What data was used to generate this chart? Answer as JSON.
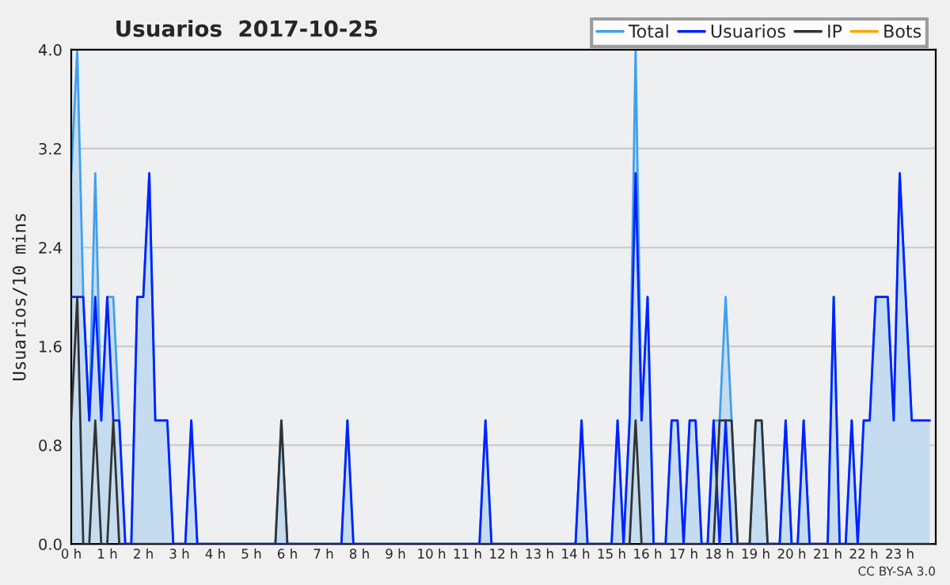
{
  "chart_data": {
    "type": "line",
    "title": "Usuarios  2017-10-25",
    "ylabel": "Usuarios/10 mins",
    "annotations": [
      "CC BY-SA 3.0"
    ],
    "x": [
      0,
      0.167,
      0.333,
      0.5,
      0.667,
      0.833,
      1,
      1.167,
      1.333,
      1.5,
      1.667,
      1.833,
      2,
      2.167,
      2.333,
      2.5,
      2.667,
      2.833,
      3,
      3.167,
      3.333,
      3.5,
      3.667,
      3.833,
      4,
      4.167,
      4.333,
      4.5,
      4.667,
      4.833,
      5,
      5.167,
      5.333,
      5.5,
      5.667,
      5.833,
      6,
      6.167,
      6.333,
      6.5,
      6.667,
      6.833,
      7,
      7.167,
      7.333,
      7.5,
      7.667,
      7.833,
      8,
      8.167,
      8.333,
      8.5,
      8.667,
      8.833,
      9,
      9.167,
      9.333,
      9.5,
      9.667,
      9.833,
      10,
      10.167,
      10.333,
      10.5,
      10.667,
      10.833,
      11,
      11.167,
      11.333,
      11.5,
      11.667,
      11.833,
      12,
      12.167,
      12.333,
      12.5,
      12.667,
      12.833,
      13,
      13.167,
      13.333,
      13.5,
      13.667,
      13.833,
      14,
      14.167,
      14.333,
      14.5,
      14.667,
      14.833,
      15,
      15.167,
      15.333,
      15.5,
      15.667,
      15.833,
      16,
      16.167,
      16.333,
      16.5,
      16.667,
      16.833,
      17,
      17.167,
      17.333,
      17.5,
      17.667,
      17.833,
      18,
      18.167,
      18.333,
      18.5,
      18.667,
      18.833,
      19,
      19.167,
      19.333,
      19.5,
      19.667,
      19.833,
      20,
      20.167,
      20.333,
      20.5,
      20.667,
      20.833,
      21,
      21.167,
      21.333,
      21.5,
      21.667,
      21.833,
      22,
      22.167,
      22.333,
      22.5,
      22.667,
      22.833,
      23,
      23.167,
      23.333,
      23.5,
      23.667,
      23.833
    ],
    "series": [
      {
        "name": "Total",
        "color": "#3fa0f0",
        "type": "area",
        "values": [
          3,
          4,
          2,
          1,
          3,
          1,
          2,
          2,
          1,
          0,
          0,
          2,
          2,
          3,
          1,
          1,
          1,
          0,
          0,
          0,
          1,
          0,
          0,
          0,
          0,
          0,
          0,
          0,
          0,
          0,
          0,
          0,
          0,
          0,
          0,
          1,
          0,
          0,
          0,
          0,
          0,
          0,
          0,
          0,
          0,
          0,
          1,
          0,
          0,
          0,
          0,
          0,
          0,
          0,
          0,
          0,
          0,
          0,
          0,
          0,
          0,
          0,
          0,
          0,
          0,
          0,
          0,
          0,
          0,
          1,
          0,
          0,
          0,
          0,
          0,
          0,
          0,
          0,
          0,
          0,
          0,
          0,
          0,
          0,
          0,
          1,
          0,
          0,
          0,
          0,
          0,
          1,
          0,
          1,
          4,
          1,
          2,
          0,
          0,
          0,
          1,
          1,
          0,
          1,
          1,
          0,
          0,
          1,
          1,
          2,
          1,
          0,
          0,
          0,
          1,
          1,
          0,
          0,
          0,
          1,
          0,
          0,
          1,
          0,
          0,
          0,
          0,
          2,
          0,
          0,
          1,
          0,
          1,
          1,
          2,
          2,
          2,
          1,
          3,
          2,
          1,
          1,
          1,
          1
        ]
      },
      {
        "name": "Usuarios",
        "color": "#0022ff",
        "values": [
          2,
          2,
          2,
          1,
          2,
          1,
          2,
          1,
          1,
          0,
          0,
          2,
          2,
          3,
          1,
          1,
          1,
          0,
          0,
          0,
          1,
          0,
          0,
          0,
          0,
          0,
          0,
          0,
          0,
          0,
          0,
          0,
          0,
          0,
          0,
          0,
          0,
          0,
          0,
          0,
          0,
          0,
          0,
          0,
          0,
          0,
          1,
          0,
          0,
          0,
          0,
          0,
          0,
          0,
          0,
          0,
          0,
          0,
          0,
          0,
          0,
          0,
          0,
          0,
          0,
          0,
          0,
          0,
          0,
          1,
          0,
          0,
          0,
          0,
          0,
          0,
          0,
          0,
          0,
          0,
          0,
          0,
          0,
          0,
          0,
          1,
          0,
          0,
          0,
          0,
          0,
          1,
          0,
          1,
          3,
          1,
          2,
          0,
          0,
          0,
          1,
          1,
          0,
          1,
          1,
          0,
          0,
          1,
          0,
          1,
          0,
          0,
          0,
          0,
          0,
          0,
          0,
          0,
          0,
          1,
          0,
          0,
          1,
          0,
          0,
          0,
          0,
          2,
          0,
          0,
          1,
          0,
          1,
          1,
          2,
          2,
          2,
          1,
          3,
          2,
          1,
          1,
          1,
          1
        ]
      },
      {
        "name": "IP",
        "color": "#333333",
        "values": [
          1,
          2,
          0,
          0,
          1,
          0,
          0,
          1,
          0,
          0,
          0,
          0,
          0,
          0,
          0,
          0,
          0,
          0,
          0,
          0,
          0,
          0,
          0,
          0,
          0,
          0,
          0,
          0,
          0,
          0,
          0,
          0,
          0,
          0,
          0,
          1,
          0,
          0,
          0,
          0,
          0,
          0,
          0,
          0,
          0,
          0,
          0,
          0,
          0,
          0,
          0,
          0,
          0,
          0,
          0,
          0,
          0,
          0,
          0,
          0,
          0,
          0,
          0,
          0,
          0,
          0,
          0,
          0,
          0,
          0,
          0,
          0,
          0,
          0,
          0,
          0,
          0,
          0,
          0,
          0,
          0,
          0,
          0,
          0,
          0,
          0,
          0,
          0,
          0,
          0,
          0,
          0,
          0,
          0,
          1,
          0,
          0,
          0,
          0,
          0,
          0,
          0,
          0,
          0,
          0,
          0,
          0,
          0,
          1,
          1,
          1,
          0,
          0,
          0,
          1,
          1,
          0,
          0,
          0,
          0,
          0,
          0,
          0,
          0,
          0,
          0,
          0,
          0,
          0,
          0,
          0,
          0,
          0,
          0,
          0,
          0,
          0,
          0,
          0,
          0,
          0,
          0,
          0,
          0
        ]
      },
      {
        "name": "Bots",
        "color": "#ffa500",
        "values": [
          null,
          null,
          null,
          null,
          null,
          null,
          null,
          null,
          null,
          null,
          null,
          null,
          null,
          null,
          null,
          null,
          null,
          null,
          null,
          null,
          null,
          null,
          null,
          null,
          null,
          null,
          null,
          null,
          null,
          null,
          null,
          null,
          null,
          null,
          null,
          null,
          null,
          null,
          null,
          null,
          null,
          null,
          null,
          null,
          null,
          null,
          null,
          null,
          null,
          null,
          null,
          null,
          null,
          null,
          null,
          null,
          null,
          null,
          null,
          null,
          null,
          null,
          null,
          null,
          null,
          null,
          null,
          null,
          null,
          null,
          null,
          null,
          null,
          null,
          null,
          null,
          null,
          null,
          null,
          null,
          null,
          null,
          null,
          null,
          null,
          null,
          null,
          null,
          null,
          null,
          null,
          null,
          null,
          null,
          null,
          null,
          null,
          null,
          null,
          null,
          null,
          null,
          null,
          null,
          null,
          null,
          null,
          null,
          null,
          null,
          null,
          null,
          null,
          null,
          null,
          null,
          null,
          null,
          null,
          null,
          null,
          null,
          null,
          null,
          null,
          null,
          null,
          null,
          null,
          null,
          null,
          null,
          null,
          null,
          null,
          null,
          null,
          null,
          null,
          null,
          null,
          null,
          null,
          null
        ]
      }
    ],
    "xlim": [
      0,
      24
    ],
    "xticks": [
      {
        "value": 0,
        "label": "0 h"
      },
      {
        "value": 1,
        "label": "1 h"
      },
      {
        "value": 2,
        "label": "2 h"
      },
      {
        "value": 3,
        "label": "3 h"
      },
      {
        "value": 4,
        "label": "4 h"
      },
      {
        "value": 5,
        "label": "5 h"
      },
      {
        "value": 6,
        "label": "6 h"
      },
      {
        "value": 7,
        "label": "7 h"
      },
      {
        "value": 8,
        "label": "8 h"
      },
      {
        "value": 9,
        "label": "9 h"
      },
      {
        "value": 10,
        "label": "10 h"
      },
      {
        "value": 11,
        "label": "11 h"
      },
      {
        "value": 12,
        "label": "12 h"
      },
      {
        "value": 13,
        "label": "13 h"
      },
      {
        "value": 14,
        "label": "14 h"
      },
      {
        "value": 15,
        "label": "15 h"
      },
      {
        "value": 16,
        "label": "16 h"
      },
      {
        "value": 17,
        "label": "17 h"
      },
      {
        "value": 18,
        "label": "18 h"
      },
      {
        "value": 19,
        "label": "19 h"
      },
      {
        "value": 20,
        "label": "20 h"
      },
      {
        "value": 21,
        "label": "21 h"
      },
      {
        "value": 22,
        "label": "22 h"
      },
      {
        "value": 23,
        "label": "23 h"
      }
    ],
    "ylim": [
      0,
      4
    ],
    "yticks": [
      {
        "value": 0,
        "label": "0.0"
      },
      {
        "value": 0.8,
        "label": "0.8"
      },
      {
        "value": 1.6,
        "label": "1.6"
      },
      {
        "value": 2.4,
        "label": "2.4"
      },
      {
        "value": 3.2,
        "label": "3.2"
      },
      {
        "value": 4,
        "label": "4.0"
      }
    ],
    "grid": "y",
    "legend": "top right",
    "marker": "none",
    "line_style": "solid"
  }
}
